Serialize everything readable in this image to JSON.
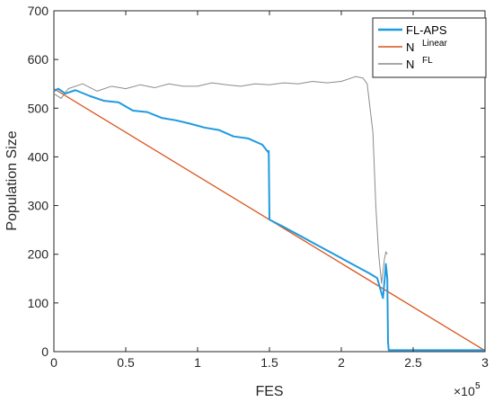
{
  "chart_data": {
    "type": "line",
    "xlabel": "FES",
    "ylabel": "Population Size",
    "x_multiplier_label": "×10",
    "x_multiplier_exponent": "5",
    "xlim": [
      0,
      300000
    ],
    "ylim": [
      0,
      700
    ],
    "x_ticks": [
      0,
      50000,
      100000,
      150000,
      200000,
      250000,
      300000
    ],
    "x_tick_labels": [
      "0",
      "0.5",
      "1",
      "1.5",
      "2",
      "2.5",
      "3"
    ],
    "y_ticks": [
      0,
      100,
      200,
      300,
      400,
      500,
      600,
      700
    ],
    "y_tick_labels": [
      "0",
      "100",
      "200",
      "300",
      "400",
      "500",
      "600",
      "700"
    ],
    "legend_position": "top-right",
    "grid": false,
    "series": [
      {
        "key": "fl_aps",
        "name": "FL-APS",
        "name_sup": "",
        "color": "#1f9ae0",
        "x": [
          0,
          3000,
          8000,
          15000,
          25000,
          35000,
          45000,
          55000,
          65000,
          75000,
          85000,
          95000,
          105000,
          115000,
          125000,
          135000,
          145000,
          149000,
          149500,
          150000,
          160000,
          170000,
          180000,
          190000,
          200000,
          210000,
          220000,
          225000,
          227000,
          229000,
          230500,
          231000,
          232000,
          232500,
          233000,
          240000,
          260000,
          280000,
          300000
        ],
        "y": [
          535,
          540,
          530,
          537,
          525,
          515,
          512,
          495,
          492,
          480,
          475,
          468,
          460,
          455,
          442,
          438,
          425,
          410,
          412,
          271,
          256,
          240,
          224,
          208,
          192,
          176,
          160,
          151,
          130,
          110,
          160,
          180,
          150,
          20,
          3,
          3,
          3,
          3,
          3
        ]
      },
      {
        "key": "n_linear",
        "name": "N",
        "name_sup": "Linear",
        "color": "#d9541a",
        "x": [
          0,
          300000
        ],
        "y": [
          540,
          2
        ]
      },
      {
        "key": "n_fl",
        "name": "N",
        "name_sup": "FL",
        "color": "#8c8c8c",
        "x": [
          0,
          5000,
          10000,
          20000,
          30000,
          40000,
          50000,
          60000,
          70000,
          80000,
          90000,
          100000,
          110000,
          120000,
          130000,
          140000,
          150000,
          160000,
          170000,
          180000,
          190000,
          200000,
          205000,
          210000,
          215000,
          218000,
          220000,
          222000,
          224000,
          226000,
          228000,
          230000,
          231000,
          232000
        ],
        "y": [
          530,
          520,
          540,
          550,
          535,
          545,
          540,
          548,
          542,
          550,
          545,
          545,
          552,
          548,
          545,
          550,
          548,
          552,
          550,
          555,
          552,
          555,
          560,
          565,
          562,
          550,
          500,
          450,
          300,
          200,
          140,
          190,
          205,
          200
        ]
      }
    ]
  }
}
